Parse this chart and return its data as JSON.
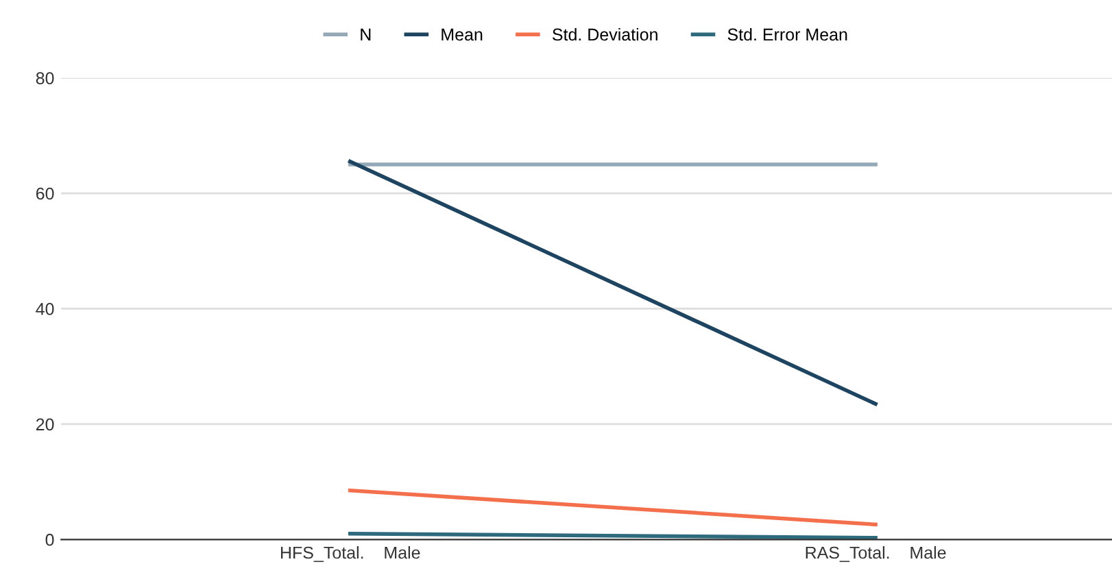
{
  "chart_data": {
    "type": "line",
    "categories": [
      "HFS_Total.    Male",
      "RAS_Total.    Male"
    ],
    "series": [
      {
        "name": "N",
        "color": "#93a9b8",
        "values": [
          65,
          65
        ]
      },
      {
        "name": "Mean",
        "color": "#1d4460",
        "values": [
          65.5,
          23.5
        ]
      },
      {
        "name": "Std. Deviation",
        "color": "#f4704d",
        "values": [
          8.5,
          2.6
        ]
      },
      {
        "name": "Std. Error Mean",
        "color": "#2e6a7e",
        "values": [
          1.0,
          0.3
        ]
      }
    ],
    "ylim": [
      0,
      80
    ],
    "yticks": [
      0,
      20,
      40,
      60,
      80
    ],
    "grid": "y",
    "legend": "top",
    "marker": "none",
    "line_style": "solid"
  }
}
